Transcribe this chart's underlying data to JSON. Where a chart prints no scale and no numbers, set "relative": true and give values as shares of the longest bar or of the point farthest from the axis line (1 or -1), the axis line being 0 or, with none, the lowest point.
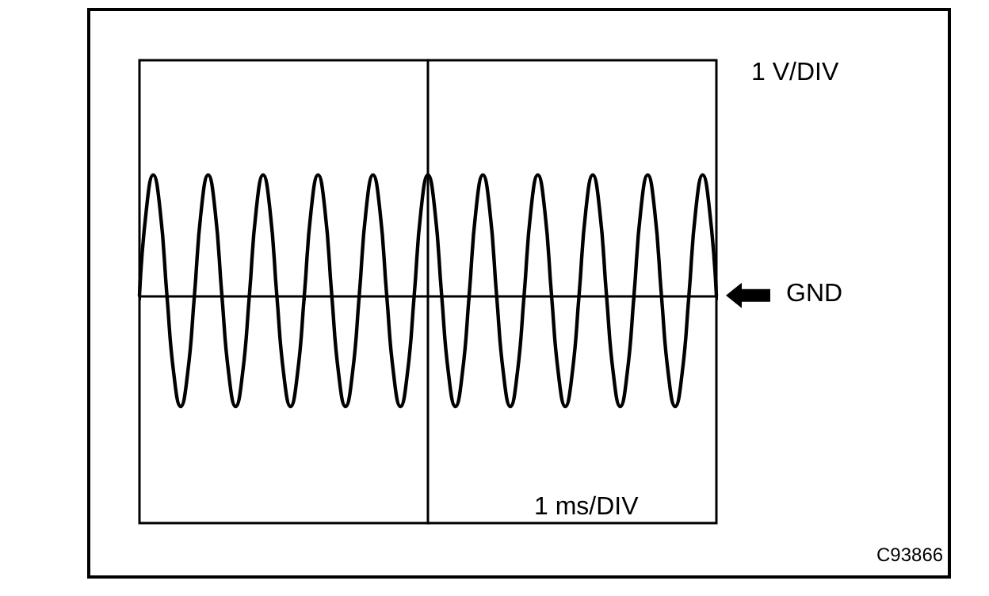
{
  "chart_data": {
    "type": "line",
    "relative": true,
    "categories": [
      null,
      null,
      null,
      null,
      null,
      null,
      null,
      null,
      null,
      null,
      null,
      null,
      null,
      null,
      null,
      null,
      null,
      null,
      null,
      null,
      null,
      null,
      null,
      null,
      null,
      null,
      null,
      null,
      null,
      null,
      null,
      null,
      null,
      null,
      null,
      null,
      null,
      null,
      null,
      null,
      null,
      null,
      null,
      null,
      null,
      null,
      null,
      null,
      null,
      null,
      null,
      null,
      null,
      null,
      null,
      null,
      null,
      null,
      null,
      null,
      null,
      null,
      null,
      null,
      null,
      null,
      null,
      null,
      null,
      null,
      null,
      null,
      null,
      null,
      null,
      null,
      null,
      null,
      null,
      null,
      null,
      null,
      null,
      null,
      null
    ],
    "series": [
      {
        "color": "#000000",
        "values": [
          0,
          0.71,
          1,
          0.71,
          0,
          -0.65,
          -0.92,
          -0.65,
          0,
          0.71,
          1,
          0.71,
          0,
          -0.65,
          -0.92,
          -0.65,
          0,
          0.71,
          1,
          0.71,
          0,
          -0.65,
          -0.92,
          -0.65,
          0,
          0.71,
          1,
          0.71,
          0,
          -0.65,
          -0.92,
          -0.65,
          0,
          0.71,
          1,
          0.71,
          0,
          -0.65,
          -0.92,
          -0.65,
          0,
          0.71,
          1,
          0.71,
          0,
          -0.65,
          -0.92,
          -0.65,
          0,
          0.71,
          1,
          0.71,
          0,
          -0.65,
          -0.92,
          -0.65,
          0,
          0.71,
          1,
          0.71,
          0,
          -0.65,
          -0.92,
          -0.65,
          0,
          0.71,
          1,
          0.71,
          0,
          -0.65,
          -0.92,
          -0.65,
          0,
          0.71,
          1,
          0.71,
          0,
          -0.65,
          -0.92,
          -0.65,
          0,
          0.71,
          1,
          0.71,
          0
        ]
      }
    ],
    "annotations": [
      "1 V/DIV",
      "1 ms/DIV",
      "GND",
      "C93866"
    ],
    "grid": false,
    "line_style": "solid"
  }
}
